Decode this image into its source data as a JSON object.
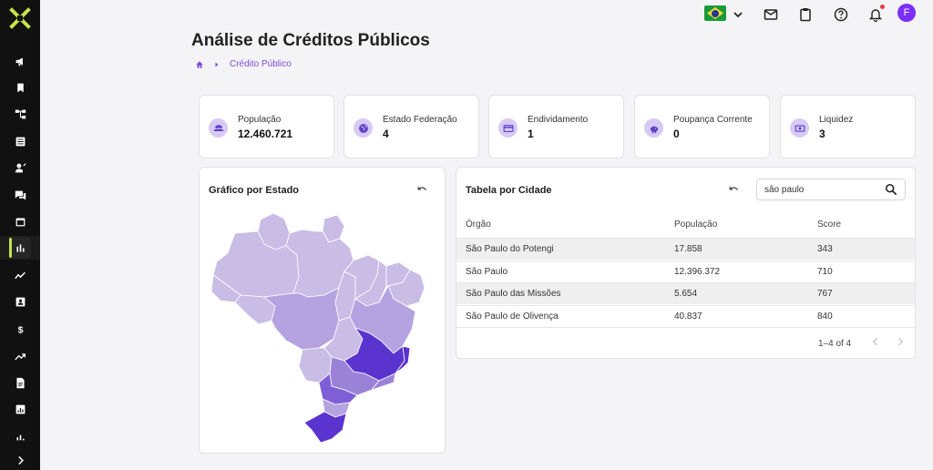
{
  "header": {
    "page_title": "Análise de Créditos Públicos",
    "avatar_initial": "F"
  },
  "breadcrumb": {
    "current": "Crédito Público"
  },
  "sidebar": {
    "icons": [
      "logo-icon",
      "megaphone-icon",
      "bookmark-icon",
      "org-chart-icon",
      "list-icon",
      "user-edit-icon",
      "chat-icon",
      "calendar-icon",
      "bar-chart-icon",
      "trend-icon",
      "id-card-icon",
      "dollar-icon",
      "growth-icon",
      "document-icon",
      "report-icon",
      "small-bar-icon",
      "chevron-right-icon"
    ],
    "active_index": 8,
    "accent": "#c7e34a"
  },
  "stats": [
    {
      "label": "População",
      "value": "12.460.721",
      "icon": "people-icon"
    },
    {
      "label": "Estado Federação",
      "value": "4",
      "icon": "globe-icon"
    },
    {
      "label": "Endividamento",
      "value": "1",
      "icon": "credit-card-icon"
    },
    {
      "label": "Poupança Corrente",
      "value": "0",
      "icon": "piggy-bank-icon"
    },
    {
      "label": "Liquidez",
      "value": "3",
      "icon": "cash-icon"
    }
  ],
  "map_panel": {
    "title": "Gráfico por Estado",
    "colors": {
      "light": "#c9bde6",
      "mid": "#b4a3e0",
      "mid2": "#9b82d9",
      "strong": "#7f5ed6",
      "dark": "#5b34d0"
    }
  },
  "table_panel": {
    "title": "Tabela por Cidade",
    "search_value": "são paulo",
    "columns": [
      "Órgão",
      "População",
      "Score"
    ],
    "rows": [
      {
        "orgao": "São Paulo do Potengi",
        "populacao": "17.858",
        "score": "343"
      },
      {
        "orgao": "São Paulo",
        "populacao": "12.396.372",
        "score": "710"
      },
      {
        "orgao": "São Paulo das Missões",
        "populacao": "5.654",
        "score": "767"
      },
      {
        "orgao": "São Paulo de Olivença",
        "populacao": "40.837",
        "score": "840"
      }
    ],
    "pagination": "1–4 of 4"
  }
}
